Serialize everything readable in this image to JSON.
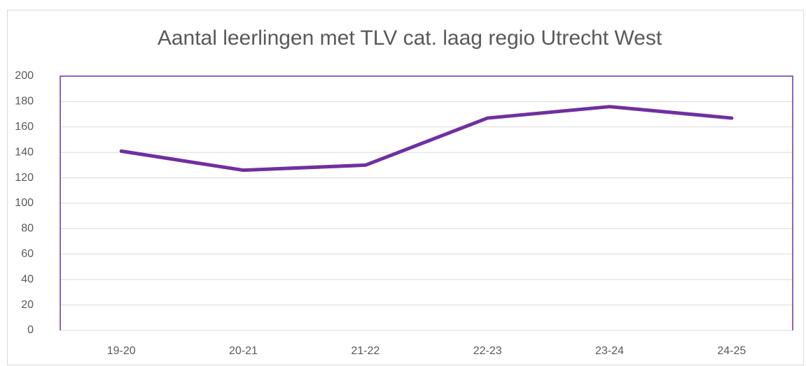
{
  "chart_data": {
    "type": "line",
    "title": "Aantal leerlingen met TLV cat. laag  regio Utrecht West",
    "categories": [
      "19-20",
      "20-21",
      "21-22",
      "22-23",
      "23-24",
      "24-25"
    ],
    "series": [
      {
        "name": "Aantal leerlingen",
        "color": "#7030a0",
        "values": [
          141,
          126,
          130,
          167,
          176,
          167
        ]
      }
    ],
    "ylim": [
      0,
      200
    ],
    "yticks": [
      0,
      20,
      40,
      60,
      80,
      100,
      120,
      140,
      160,
      180,
      200
    ],
    "grid": true
  }
}
